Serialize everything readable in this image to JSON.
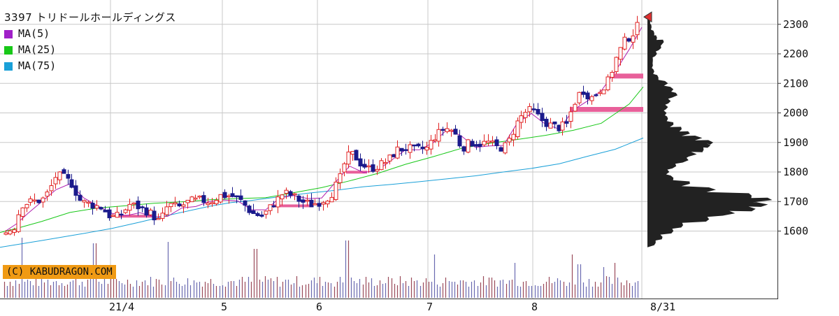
{
  "chart_data": {
    "type": "candlestick",
    "code": "3397",
    "title": "3397 トリドールホールディングス",
    "x_tick_labels": [
      "21/4",
      "5",
      "6",
      "7",
      "8",
      "8/31"
    ],
    "y_tick_labels": [
      "2300",
      "2200",
      "2100",
      "2000",
      "1900",
      "1800",
      "1700",
      "1600"
    ],
    "ylim": [
      1500,
      2340
    ],
    "grid": true,
    "legend": [
      {
        "name": "MA(5)",
        "color": "#a020c8"
      },
      {
        "name": "MA(25)",
        "color": "#18c818"
      },
      {
        "name": "MA(75)",
        "color": "#1aa0d8"
      }
    ],
    "last_price_marker": 2325,
    "colors": {
      "up": "#e02020",
      "down": "#1a1a8c",
      "ma5": "#b020b0",
      "ma25": "#18c818",
      "ma75": "#1aa0d8",
      "volume": "#6a6ab0",
      "zones": "#e8609a",
      "profile": "#222222"
    },
    "moving_averages": {
      "ma75": [
        [
          0,
          1545
        ],
        [
          60,
          1568
        ],
        [
          120,
          1592
        ],
        [
          160,
          1609
        ],
        [
          200,
          1630
        ],
        [
          240,
          1653
        ],
        [
          300,
          1684
        ],
        [
          330,
          1696
        ],
        [
          360,
          1704
        ],
        [
          400,
          1716
        ],
        [
          440,
          1728
        ],
        [
          480,
          1738
        ],
        [
          520,
          1750
        ],
        [
          560,
          1758
        ],
        [
          600,
          1767
        ],
        [
          640,
          1777
        ],
        [
          680,
          1787
        ],
        [
          720,
          1800
        ],
        [
          760,
          1812
        ],
        [
          800,
          1828
        ],
        [
          840,
          1853
        ],
        [
          880,
          1877
        ],
        [
          920,
          1915
        ]
      ],
      "ma25": [
        [
          0,
          1595
        ],
        [
          30,
          1613
        ],
        [
          60,
          1633
        ],
        [
          100,
          1663
        ],
        [
          140,
          1678
        ],
        [
          180,
          1686
        ],
        [
          220,
          1694
        ],
        [
          260,
          1699
        ],
        [
          300,
          1706
        ],
        [
          340,
          1710
        ],
        [
          380,
          1713
        ],
        [
          420,
          1730
        ],
        [
          460,
          1747
        ],
        [
          500,
          1770
        ],
        [
          540,
          1795
        ],
        [
          580,
          1826
        ],
        [
          620,
          1852
        ],
        [
          660,
          1880
        ],
        [
          700,
          1897
        ],
        [
          740,
          1910
        ],
        [
          780,
          1924
        ],
        [
          820,
          1941
        ],
        [
          860,
          1965
        ],
        [
          900,
          2030
        ],
        [
          920,
          2088
        ]
      ],
      "ma5": [
        [
          8,
          1600
        ],
        [
          24,
          1625
        ],
        [
          40,
          1660
        ],
        [
          60,
          1700
        ],
        [
          80,
          1740
        ],
        [
          100,
          1760
        ],
        [
          120,
          1712
        ],
        [
          140,
          1685
        ],
        [
          160,
          1660
        ],
        [
          180,
          1652
        ],
        [
          200,
          1662
        ],
        [
          220,
          1648
        ],
        [
          240,
          1650
        ],
        [
          260,
          1678
        ],
        [
          280,
          1683
        ],
        [
          300,
          1700
        ],
        [
          320,
          1705
        ],
        [
          340,
          1702
        ],
        [
          360,
          1672
        ],
        [
          380,
          1672
        ],
        [
          400,
          1712
        ],
        [
          420,
          1720
        ],
        [
          440,
          1710
        ],
        [
          460,
          1712
        ],
        [
          480,
          1766
        ],
        [
          500,
          1820
        ],
        [
          520,
          1798
        ],
        [
          540,
          1806
        ],
        [
          560,
          1840
        ],
        [
          580,
          1875
        ],
        [
          600,
          1875
        ],
        [
          620,
          1900
        ],
        [
          640,
          1945
        ],
        [
          660,
          1922
        ],
        [
          680,
          1883
        ],
        [
          700,
          1888
        ],
        [
          720,
          1890
        ],
        [
          740,
          1966
        ],
        [
          760,
          1998
        ],
        [
          780,
          1962
        ],
        [
          800,
          1945
        ],
        [
          820,
          2010
        ],
        [
          840,
          2040
        ],
        [
          860,
          2075
        ],
        [
          880,
          2140
        ],
        [
          900,
          2215
        ],
        [
          918,
          2290
        ]
      ]
    },
    "zones": [
      {
        "from": 170,
        "to": 220,
        "price": 1648
      },
      {
        "from": 385,
        "to": 448,
        "price": 1683
      },
      {
        "from": 495,
        "to": 525,
        "price": 1797
      },
      {
        "from": 815,
        "to": 920,
        "price": 2013
      },
      {
        "from": 875,
        "to": 920,
        "price": 2126
      }
    ],
    "volume_profile": [
      {
        "price": 1560,
        "len": 12
      },
      {
        "price": 1580,
        "len": 22
      },
      {
        "price": 1600,
        "len": 38
      },
      {
        "price": 1620,
        "len": 52
      },
      {
        "price": 1640,
        "len": 90
      },
      {
        "price": 1660,
        "len": 128
      },
      {
        "price": 1675,
        "len": 158
      },
      {
        "price": 1690,
        "len": 176
      },
      {
        "price": 1705,
        "len": 182
      },
      {
        "price": 1720,
        "len": 152
      },
      {
        "price": 1740,
        "len": 100
      },
      {
        "price": 1760,
        "len": 62
      },
      {
        "price": 1780,
        "len": 38
      },
      {
        "price": 1800,
        "len": 32
      },
      {
        "price": 1820,
        "len": 42
      },
      {
        "price": 1840,
        "len": 60
      },
      {
        "price": 1860,
        "len": 72
      },
      {
        "price": 1875,
        "len": 82
      },
      {
        "price": 1890,
        "len": 92
      },
      {
        "price": 1900,
        "len": 96
      },
      {
        "price": 1915,
        "len": 80
      },
      {
        "price": 1930,
        "len": 62
      },
      {
        "price": 1945,
        "len": 50
      },
      {
        "price": 1960,
        "len": 38
      },
      {
        "price": 1980,
        "len": 30
      },
      {
        "price": 2000,
        "len": 28
      },
      {
        "price": 2020,
        "len": 30
      },
      {
        "price": 2040,
        "len": 34
      },
      {
        "price": 2060,
        "len": 44
      },
      {
        "price": 2080,
        "len": 38
      },
      {
        "price": 2100,
        "len": 30
      },
      {
        "price": 2120,
        "len": 16
      },
      {
        "price": 2140,
        "len": 10
      },
      {
        "price": 2160,
        "len": 8
      },
      {
        "price": 2180,
        "len": 8
      },
      {
        "price": 2200,
        "len": 14
      },
      {
        "price": 2220,
        "len": 20
      },
      {
        "price": 2240,
        "len": 24
      },
      {
        "price": 2255,
        "len": 14
      },
      {
        "price": 2270,
        "len": 10
      },
      {
        "price": 2290,
        "len": 6
      },
      {
        "price": 2310,
        "len": 4
      }
    ]
  },
  "copyright": "(C) KABUDRAGON.COM"
}
